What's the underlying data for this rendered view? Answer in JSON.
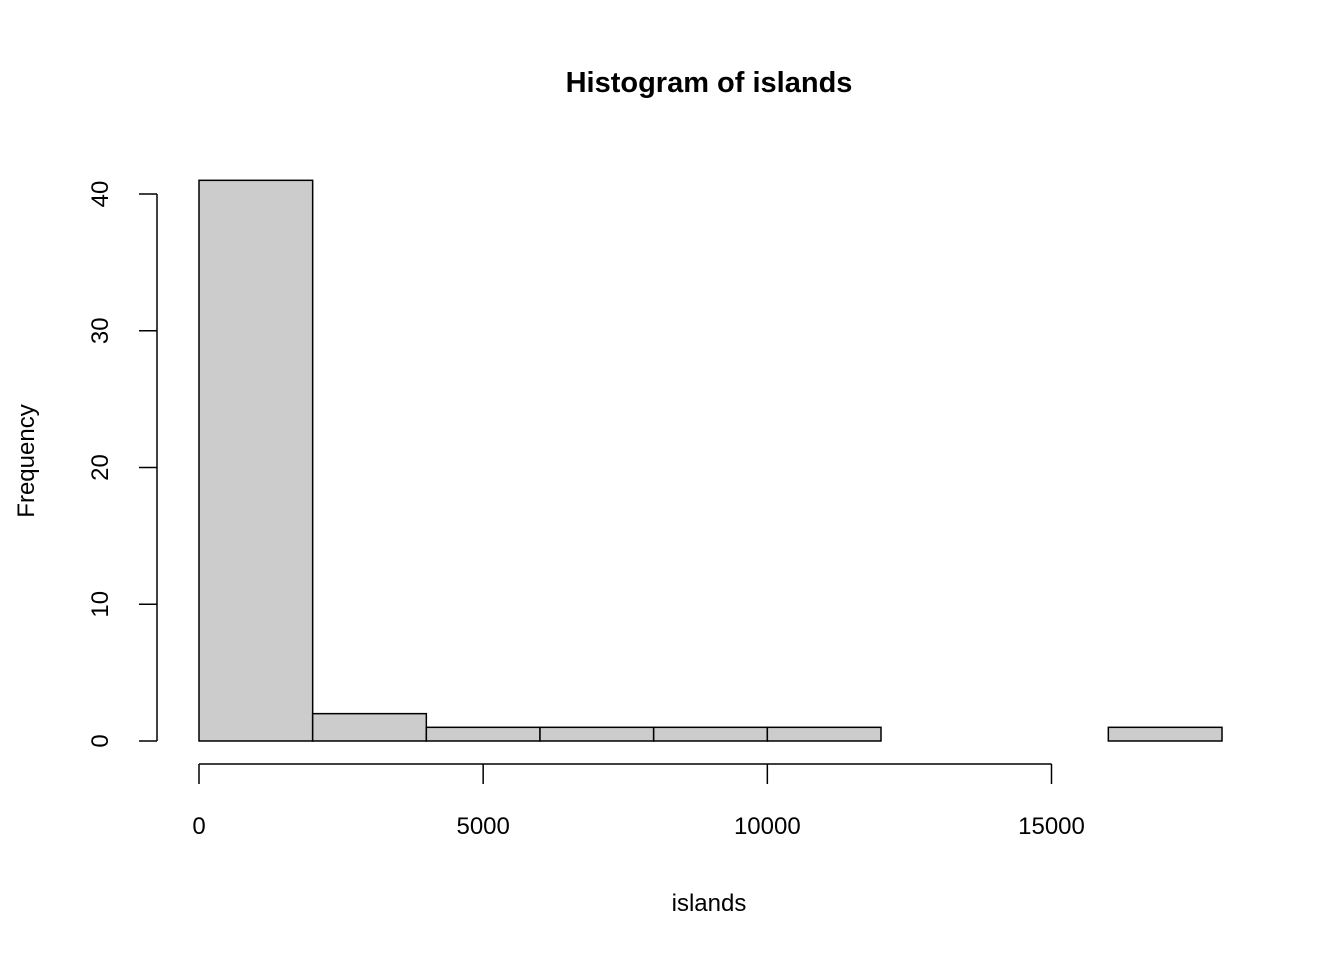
{
  "chart_data": {
    "type": "bar",
    "title": "Histogram of islands",
    "xlabel": "islands",
    "ylabel": "Frequency",
    "bins": [
      {
        "start": 0,
        "end": 2000,
        "count": 41
      },
      {
        "start": 2000,
        "end": 4000,
        "count": 2
      },
      {
        "start": 4000,
        "end": 6000,
        "count": 1
      },
      {
        "start": 6000,
        "end": 8000,
        "count": 1
      },
      {
        "start": 8000,
        "end": 10000,
        "count": 1
      },
      {
        "start": 10000,
        "end": 12000,
        "count": 1
      },
      {
        "start": 12000,
        "end": 14000,
        "count": 0
      },
      {
        "start": 14000,
        "end": 16000,
        "count": 0
      },
      {
        "start": 16000,
        "end": 18000,
        "count": 1
      }
    ],
    "xticks": [
      0,
      5000,
      10000,
      15000
    ],
    "xtick_labels": [
      "0",
      "5000",
      "10000",
      "15000"
    ],
    "yticks": [
      0,
      10,
      20,
      30,
      40
    ],
    "ytick_labels": [
      "0",
      "10",
      "20",
      "30",
      "40"
    ],
    "xlim": [
      0,
      18000
    ],
    "ylim": [
      0,
      41
    ],
    "grid": false,
    "bar_fill": "#cccccc",
    "bar_stroke": "#000000"
  }
}
